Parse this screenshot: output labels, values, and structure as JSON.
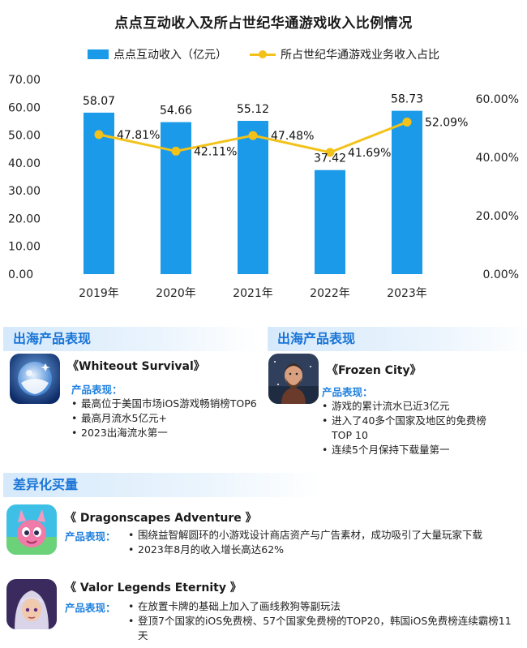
{
  "chart_data": {
    "type": "bar+line",
    "title": "点点互动收入及所占世纪华通游戏收入比例情况",
    "categories": [
      "2019年",
      "2020年",
      "2021年",
      "2022年",
      "2023年"
    ],
    "series": [
      {
        "name": "点点互动收入（亿元）",
        "type": "bar",
        "axis": "left",
        "values": [
          58.07,
          54.66,
          55.12,
          37.42,
          58.73
        ],
        "labels": [
          "58.07",
          "54.66",
          "55.12",
          "37.42",
          "58.73"
        ]
      },
      {
        "name": "所占世纪华通游戏业务收入占比",
        "type": "line",
        "axis": "right",
        "values": [
          47.81,
          42.11,
          47.48,
          41.69,
          52.09
        ],
        "labels": [
          "47.81%",
          "42.11%",
          "47.48%",
          "41.69%",
          "52.09%"
        ]
      }
    ],
    "y_left": {
      "min": 0,
      "max": 70,
      "ticks": [
        "0.00",
        "10.00",
        "20.00",
        "30.00",
        "40.00",
        "50.00",
        "60.00",
        "70.00"
      ]
    },
    "y_right": {
      "min": 0,
      "max": 60,
      "ticks": [
        "0.00%",
        "20.00%",
        "40.00%",
        "60.00%"
      ]
    },
    "grid": false,
    "legend_position": "top",
    "colors": {
      "bar": "#1a9ae8",
      "line": "#f3c21a"
    }
  },
  "sections": {
    "overseas_left": "出海产品表现",
    "overseas_right": "出海产品表现",
    "differentiated": "差异化买量"
  },
  "products": [
    {
      "title": "《Whiteout Survival》",
      "perf_label": "产品表现：",
      "bullets": [
        "最高位于美国市场iOS游戏畅销榜TOP6",
        "最高月流水5亿元+",
        "2023出海流水第一"
      ]
    },
    {
      "title": "《Frozen City》",
      "perf_label": "产品表现：",
      "bullets": [
        "游戏的累计流水已近3亿元",
        "进入了40多个国家及地区的免费榜TOP 10",
        "连续5个月保持下载量第一"
      ]
    },
    {
      "title": "《 Dragonscapes Adventure 》",
      "perf_label": "产品表现：",
      "bullets": [
        "围绕益智解圆环的小游戏设计商店资产与广告素材，成功吸引了大量玩家下载",
        "2023年8月的收入增长高达62%"
      ]
    },
    {
      "title": "《 Valor Legends Eternity 》",
      "perf_label": "产品表现：",
      "bullets": [
        "在放置卡牌的基础上加入了画线救狗等副玩法",
        "登顶7个国家的iOS免费榜、57个国家免费榜的TOP20，韩国iOS免费榜连续霸榜11天"
      ]
    }
  ],
  "icons": [
    "snow-globe-icon",
    "bearded-man-icon",
    "pink-dragon-icon",
    "valor-hero-icon"
  ]
}
